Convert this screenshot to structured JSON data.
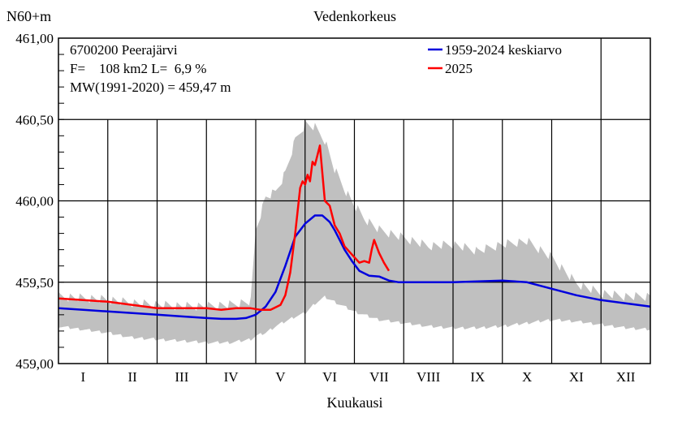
{
  "chart_data": {
    "type": "line",
    "title": "Vedenkorkeus",
    "ylabel": "N60+m",
    "xlabel": "Kuukausi",
    "ylim": [
      459.0,
      461.0
    ],
    "y_ticks": [
      "459,00",
      "459,50",
      "460,00",
      "460,50",
      "461,00"
    ],
    "y_tick_values": [
      459.0,
      459.5,
      460.0,
      460.5,
      461.0
    ],
    "x_range_months": [
      0,
      12
    ],
    "months": [
      "I",
      "II",
      "III",
      "IV",
      "V",
      "VI",
      "VII",
      "VIII",
      "IX",
      "X",
      "XI",
      "XII"
    ],
    "grid": true,
    "legend_position": "top-right",
    "info": {
      "station": "6700200 Peerajärvi",
      "area": "F=    108 km2 L=  6,9 %",
      "mw": "MW(1991-2020) = 459,47 m"
    },
    "series": [
      {
        "name": "1959-2024 keskiarvo",
        "color": "#0000dd",
        "x": [
          0,
          0.5,
          1,
          1.5,
          2,
          2.5,
          3,
          3.3,
          3.6,
          3.8,
          4.0,
          4.2,
          4.4,
          4.6,
          4.8,
          5.0,
          5.2,
          5.35,
          5.5,
          5.6,
          5.7,
          5.8,
          5.95,
          6.1,
          6.3,
          6.5,
          6.7,
          6.9,
          7.2,
          7.6,
          8,
          8.5,
          9,
          9.5,
          10,
          10.5,
          11,
          11.5,
          12
        ],
        "y": [
          459.34,
          459.33,
          459.32,
          459.31,
          459.3,
          459.29,
          459.28,
          459.275,
          459.275,
          459.28,
          459.3,
          459.35,
          459.44,
          459.6,
          459.78,
          459.86,
          459.91,
          459.91,
          459.87,
          459.82,
          459.76,
          459.7,
          459.63,
          459.57,
          459.54,
          459.535,
          459.51,
          459.5,
          459.5,
          459.5,
          459.5,
          459.505,
          459.51,
          459.5,
          459.46,
          459.42,
          459.39,
          459.37,
          459.35
        ]
      },
      {
        "name": "2025",
        "color": "#ff0000",
        "x": [
          0,
          0.5,
          1,
          1.5,
          2,
          2.5,
          3,
          3.3,
          3.6,
          3.9,
          4.1,
          4.3,
          4.5,
          4.6,
          4.7,
          4.8,
          4.9,
          4.95,
          5.0,
          5.05,
          5.1,
          5.15,
          5.2,
          5.3,
          5.4,
          5.5,
          5.6,
          5.7,
          5.8,
          5.95,
          6.1,
          6.2,
          6.3,
          6.35,
          6.4,
          6.5,
          6.6,
          6.7
        ],
        "y": [
          459.4,
          459.39,
          459.38,
          459.36,
          459.34,
          459.34,
          459.34,
          459.33,
          459.34,
          459.34,
          459.33,
          459.33,
          459.36,
          459.42,
          459.56,
          459.8,
          460.08,
          460.12,
          460.1,
          460.16,
          460.12,
          460.24,
          460.22,
          460.34,
          460.0,
          459.97,
          459.85,
          459.8,
          459.72,
          459.67,
          459.62,
          459.63,
          459.62,
          459.7,
          459.76,
          459.68,
          459.62,
          459.57
        ]
      }
    ],
    "range_band": {
      "color": "#c0c0c0",
      "x": [
        0,
        0.5,
        1,
        1.5,
        2,
        2.5,
        3,
        3.5,
        3.9,
        4.0,
        4.2,
        4.4,
        4.6,
        4.8,
        5.0,
        5.2,
        5.4,
        5.6,
        5.8,
        6.0,
        6.2,
        6.5,
        7,
        7.5,
        8,
        8.5,
        9,
        9.5,
        10,
        10.5,
        11,
        11.5,
        12
      ],
      "min": [
        459.22,
        459.2,
        459.18,
        459.15,
        459.14,
        459.13,
        459.12,
        459.12,
        459.14,
        459.16,
        459.18,
        459.22,
        459.25,
        459.28,
        459.3,
        459.36,
        459.4,
        459.37,
        459.34,
        459.31,
        459.29,
        459.26,
        459.24,
        459.22,
        459.21,
        459.21,
        459.22,
        459.24,
        459.26,
        459.25,
        459.23,
        459.21,
        459.2
      ],
      "max": [
        459.44,
        459.43,
        459.42,
        459.4,
        459.39,
        459.38,
        459.38,
        459.39,
        459.41,
        459.85,
        460.05,
        460.08,
        460.2,
        460.4,
        460.5,
        460.48,
        460.4,
        460.22,
        460.1,
        460.0,
        459.92,
        459.85,
        459.8,
        459.75,
        459.76,
        459.72,
        459.76,
        459.78,
        459.68,
        459.52,
        459.46,
        459.44,
        459.44
      ]
    }
  }
}
